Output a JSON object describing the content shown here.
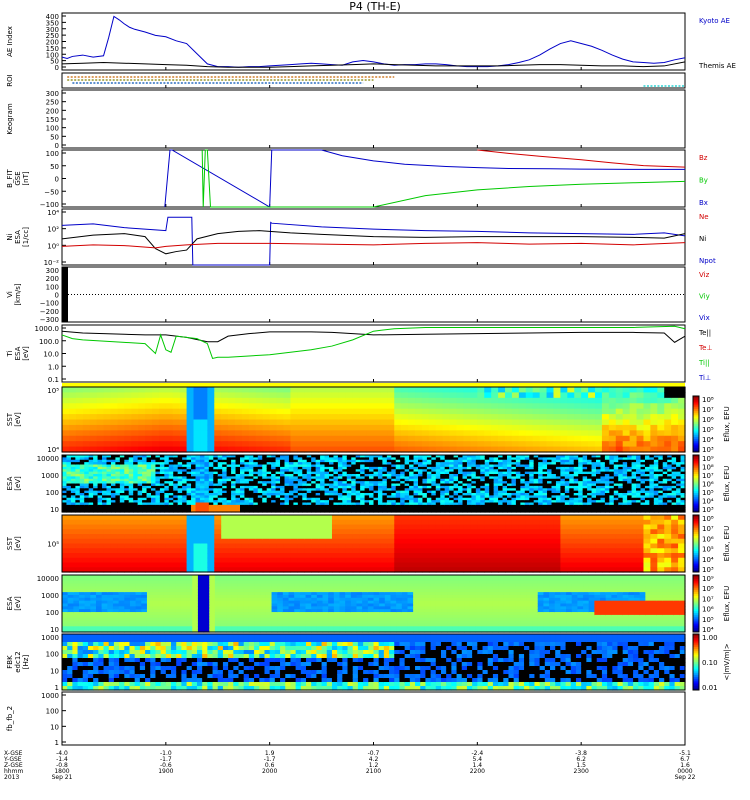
{
  "chart_data": {
    "type": "line",
    "title": "P4 (TH-E)",
    "start_time": "1800",
    "end_time": "0000",
    "panels": [
      {
        "id": "ae",
        "ylabel": "AE Index",
        "yticks": [
          "400",
          "350",
          "300",
          "250",
          "200",
          "150",
          "100",
          "50",
          "0"
        ],
        "ylim": [
          0,
          420
        ],
        "legend": [
          {
            "name": "Kyoto AE",
            "color": "#0000c8"
          },
          {
            "name": "Themis AE",
            "color": "#000000"
          }
        ],
        "series": [
          {
            "name": "Kyoto AE",
            "color": "#0000c8",
            "x": [
              0,
              0.05,
              0.1,
              0.2,
              0.3,
              0.4,
              0.45,
              0.5,
              0.55,
              0.6,
              0.65,
              0.7,
              0.8,
              0.9,
              1.0,
              1.1,
              1.2,
              1.3,
              1.4,
              1.5,
              1.6,
              1.7,
              1.8,
              1.9,
              2.0,
              2.1,
              2.2,
              2.3,
              2.4,
              2.5,
              2.6,
              2.7,
              2.8,
              2.9,
              3.0,
              3.1,
              3.2,
              3.3,
              3.4,
              3.5,
              3.6,
              3.7,
              3.8,
              3.9,
              4.0,
              4.1,
              4.2,
              4.3,
              4.4,
              4.5,
              4.6,
              4.7,
              4.8,
              4.9,
              5.0,
              5.1,
              5.2,
              5.3,
              5.4,
              5.5,
              5.6,
              5.7,
              5.8,
              5.9,
              6.0
            ],
            "y": [
              95,
              85,
              100,
              110,
              95,
              105,
              240,
              395,
              370,
              340,
              315,
              300,
              280,
              255,
              245,
              215,
              195,
              120,
              45,
              25,
              25,
              20,
              25,
              25,
              30,
              35,
              40,
              45,
              50,
              45,
              40,
              35,
              60,
              70,
              60,
              45,
              35,
              40,
              40,
              45,
              45,
              40,
              30,
              25,
              25,
              25,
              30,
              40,
              55,
              75,
              110,
              155,
              195,
              215,
              195,
              175,
              145,
              110,
              80,
              60,
              55,
              50,
              55,
              75,
              90
            ]
          },
          {
            "name": "Themis AE",
            "color": "#000000",
            "x": [
              0,
              0.2,
              0.4,
              0.6,
              0.8,
              1.0,
              1.2,
              1.4,
              1.6,
              1.8,
              2.0,
              2.2,
              2.4,
              2.6,
              2.8,
              3.0,
              3.2,
              3.4,
              3.6,
              3.8,
              4.0,
              4.2,
              4.4,
              4.6,
              4.8,
              5.0,
              5.2,
              5.4,
              5.6,
              5.8,
              6.0
            ],
            "y": [
              45,
              50,
              55,
              50,
              45,
              40,
              35,
              25,
              20,
              20,
              20,
              25,
              30,
              35,
              40,
              45,
              40,
              35,
              30,
              30,
              30,
              30,
              35,
              40,
              40,
              35,
              30,
              30,
              25,
              30,
              60
            ]
          }
        ]
      },
      {
        "id": "roi",
        "ylabel": "ROI",
        "marks": [
          {
            "name": "roi-row-1",
            "color": "#c86400",
            "x_start": 0.05,
            "x_end": 3.2
          },
          {
            "name": "roi-row-2",
            "color": "#808000",
            "x_start": 0.05,
            "x_end": 3.0
          },
          {
            "name": "roi-row-3",
            "color": "#0050b4",
            "x_start": 0.1,
            "x_end": 2.9
          },
          {
            "name": "roi-row-4",
            "color": "#00c8c8",
            "x_start": 5.6,
            "x_end": 6.0
          }
        ]
      },
      {
        "id": "keogram",
        "ylabel": "Keogram",
        "yticks": [
          "300",
          "250",
          "200",
          "150",
          "100",
          "50",
          "0"
        ],
        "ylim": [
          0,
          300
        ]
      },
      {
        "id": "b_fit",
        "ylabel": "B_FIT\nGSE\n[nT]",
        "yticks": [
          "100",
          "50",
          "0",
          "−50",
          "−100"
        ],
        "ylim": [
          -100,
          100
        ],
        "legend": [
          {
            "name": "Bz",
            "color": "#d20000"
          },
          {
            "name": "By",
            "color": "#00c800"
          },
          {
            "name": "Bx",
            "color": "#0000c8"
          }
        ],
        "series": [
          {
            "name": "Bx",
            "color": "#0000c8",
            "x": [
              0.99,
              1.04,
              1.06,
              2.0,
              2.02,
              2.5,
              2.7,
              3.0,
              3.3,
              3.7,
              4.0,
              4.3,
              4.7,
              5.0,
              5.5,
              6.0
            ],
            "y": [
              -100,
              100,
              100,
              -100,
              100,
              100,
              80,
              62,
              50,
              42,
              38,
              35,
              34,
              33,
              32,
              32
            ]
          },
          {
            "name": "By",
            "color": "#00c800",
            "x": [
              1.35,
              1.36,
              1.38,
              1.4,
              1.43,
              3.0,
              3.5,
              4.0,
              4.5,
              5.0,
              5.5,
              6.0
            ],
            "y": [
              100,
              -100,
              100,
              100,
              -100,
              -100,
              -60,
              -40,
              -28,
              -20,
              -15,
              -10
            ]
          },
          {
            "name": "Bz",
            "color": "#d20000",
            "x": [
              4.0,
              4.3,
              4.6,
              5.0,
              5.3,
              5.6,
              6.0
            ],
            "y": [
              100,
              88,
              78,
              66,
              55,
              45,
              40
            ]
          }
        ]
      },
      {
        "id": "ni",
        "ylabel": "Ni\nESA\n[1/cc]",
        "yticks": [
          "10⁴",
          "10²",
          "10⁰",
          "10⁻²"
        ],
        "ylim_log": [
          -3,
          4.5
        ],
        "legend": [
          {
            "name": "Ne",
            "color": "#d20000"
          },
          {
            "name": "Ni",
            "color": "#000000"
          },
          {
            "name": "Npot",
            "color": "#0000c8"
          }
        ],
        "series": [
          {
            "name": "Npot",
            "color": "#0000c8",
            "x": [
              0,
              0.3,
              0.6,
              0.9,
              1.0,
              1.02,
              1.2,
              1.25,
              1.26,
              1.27,
              1.8,
              2.0,
              2.01,
              2.02,
              2.5,
              3.0,
              3.5,
              4.0,
              4.5,
              5.0,
              5.5,
              5.8,
              6.0
            ],
            "y": [
              2.3,
              2.5,
              2.0,
              1.7,
              1.6,
              3.4,
              3.4,
              3.4,
              -3,
              -3,
              -3,
              -3,
              2.7,
              2.6,
              2.1,
              1.8,
              1.6,
              1.5,
              1.3,
              1.2,
              1.1,
              1.3,
              0.9
            ]
          },
          {
            "name": "Ni",
            "color": "#000000",
            "x": [
              0,
              0.3,
              0.6,
              0.8,
              0.9,
              1.0,
              1.1,
              1.2,
              1.3,
              1.5,
              1.7,
              1.9,
              2.0,
              2.2,
              2.5,
              3.0,
              3.5,
              4.0,
              4.5,
              5.0,
              5.5,
              5.8,
              6.0
            ],
            "y": [
              0.5,
              1.0,
              1.2,
              0.8,
              -0.8,
              -1.5,
              -1.2,
              -1.0,
              0.5,
              1.2,
              1.5,
              1.6,
              1.5,
              1.3,
              1.1,
              0.8,
              0.7,
              0.8,
              0.8,
              0.8,
              0.7,
              0.6,
              1.2
            ]
          },
          {
            "name": "Ne",
            "color": "#d20000",
            "x": [
              0,
              0.3,
              0.6,
              0.9,
              1.0,
              1.2,
              1.5,
              2.0,
              2.5,
              3.0,
              3.5,
              4.0,
              4.5,
              5.0,
              5.5,
              6.0
            ],
            "y": [
              -0.5,
              -0.3,
              -0.4,
              -0.7,
              -0.5,
              -0.3,
              -0.1,
              -0.1,
              -0.2,
              -0.3,
              -0.1,
              0.0,
              -0.2,
              -0.1,
              -0.3,
              0.0
            ]
          }
        ]
      },
      {
        "id": "vi",
        "ylabel": "Vi\n[km/s]",
        "yticks": [
          "300",
          "200",
          "100",
          "0",
          "−100",
          "−200",
          "−300"
        ],
        "ylim": [
          -350,
          350
        ],
        "legend": [
          {
            "name": "Viz",
            "color": "#d20000"
          },
          {
            "name": "Viy",
            "color": "#00c800"
          },
          {
            "name": "Vix",
            "color": "#0000c8"
          }
        ]
      },
      {
        "id": "ti",
        "ylabel": "Ti\nESA\n[eV]",
        "yticks": [
          "1000.0",
          "100.0",
          "10.0",
          "1.0",
          "0.1"
        ],
        "ylim_log": [
          -1.2,
          3.4
        ],
        "legend": [
          {
            "name": "Te||",
            "color": "#000000"
          },
          {
            "name": "Te⊥",
            "color": "#d20000"
          },
          {
            "name": "Ti||",
            "color": "#00c800"
          },
          {
            "name": "Ti⊥",
            "color": "#0000c8"
          }
        ],
        "series": [
          {
            "name": "Te||",
            "color": "#000000",
            "x": [
              0,
              0.2,
              0.4,
              0.6,
              0.8,
              1.0,
              1.2,
              1.4,
              1.5,
              1.6,
              1.8,
              2.0,
              2.2,
              2.4,
              2.6,
              2.8,
              3.0,
              3.5,
              4.0,
              4.5,
              5.0,
              5.5,
              5.8,
              5.9,
              6.0
            ],
            "y": [
              2.9,
              2.75,
              2.7,
              2.65,
              2.6,
              2.6,
              2.4,
              2.05,
              2.05,
              2.5,
              2.7,
              2.85,
              2.85,
              2.85,
              2.8,
              2.7,
              2.6,
              2.65,
              2.7,
              2.75,
              2.8,
              2.8,
              2.75,
              2.0,
              2.5
            ]
          },
          {
            "name": "Ti||",
            "color": "#00c800",
            "x": [
              0,
              0.1,
              0.2,
              0.4,
              0.6,
              0.8,
              0.9,
              0.95,
              1.0,
              1.05,
              1.1,
              1.3,
              1.4,
              1.45,
              1.5,
              1.6,
              1.8,
              2.0,
              2.2,
              2.4,
              2.6,
              2.8,
              3.0,
              3.2,
              3.5,
              4.0,
              4.5,
              5.0,
              5.5,
              5.9,
              6.0
            ],
            "y": [
              2.6,
              2.3,
              2.2,
              2.1,
              2.0,
              1.9,
              1.1,
              2.6,
              1.4,
              1.2,
              2.5,
              2.3,
              1.9,
              0.7,
              0.8,
              0.8,
              0.9,
              1.0,
              1.2,
              1.4,
              1.7,
              2.2,
              2.9,
              3.1,
              3.2,
              3.2,
              3.2,
              3.2,
              3.2,
              3.3,
              3.1
            ]
          }
        ]
      },
      {
        "id": "sst_a",
        "ylabel": "SST\n[eV]",
        "yticks": [
          "10⁵",
          "10⁴"
        ],
        "colorbar": {
          "label": "Eflux, EFU",
          "ticks": [
            "10⁸",
            "10⁷",
            "10⁶",
            "10⁵",
            "10⁴",
            "10³"
          ]
        }
      },
      {
        "id": "esa_a",
        "ylabel": "ESA\n[eV]",
        "yticks": [
          "10000",
          "1000",
          "100",
          "10"
        ],
        "colorbar": {
          "label": "Eflux, EFU",
          "ticks": [
            "10⁹",
            "10⁸",
            "10⁷",
            "10⁶",
            "10⁵",
            "10⁴",
            "10³"
          ]
        }
      },
      {
        "id": "sst_e",
        "ylabel": "SST\n[eV]",
        "yticks": [
          "10⁵"
        ],
        "colorbar": {
          "label": "Eflux, EFU",
          "ticks": [
            "10⁸",
            "10⁷",
            "10⁶",
            "10⁵",
            "10⁴",
            "10³"
          ]
        }
      },
      {
        "id": "esa_e",
        "ylabel": "ESA\n[eV]",
        "yticks": [
          "10000",
          "1000",
          "100",
          "10"
        ],
        "colorbar": {
          "label": "Eflux, EFU",
          "ticks": [
            "10⁹",
            "10⁸",
            "10⁷",
            "10⁶",
            "10⁵",
            "10⁴"
          ]
        }
      },
      {
        "id": "fbk",
        "ylabel": "FBK\nedc12\n[Hz]",
        "yticks": [
          "1000",
          "100",
          "10",
          "1"
        ],
        "colorbar": {
          "label": "<|mV/m|>",
          "ticks": [
            "1.00",
            "0.10",
            "0.01"
          ]
        }
      },
      {
        "id": "fb",
        "ylabel": "fb_fb_2",
        "yticks": [
          "1000",
          "100",
          "10",
          "1"
        ]
      }
    ],
    "x_axis": {
      "row_labels": [
        "X-GSE",
        "Y-GSE",
        "Z-GSE",
        "hhmm",
        "2013"
      ],
      "ticks": [
        {
          "t": 0,
          "vals": [
            "-4.0",
            "-1.4",
            "-0.8",
            "1800",
            "Sep 21"
          ]
        },
        {
          "t": 1,
          "vals": [
            "-1.0",
            "-1.7",
            "-0.6",
            "1900",
            ""
          ]
        },
        {
          "t": 2,
          "vals": [
            "1.9",
            "-1.7",
            "0.6",
            "2000",
            ""
          ]
        },
        {
          "t": 3,
          "vals": [
            "-0.7",
            "4.2",
            "1.2",
            "2100",
            ""
          ]
        },
        {
          "t": 4,
          "vals": [
            "-2.4",
            "5.4",
            "1.4",
            "2200",
            ""
          ]
        },
        {
          "t": 5,
          "vals": [
            "-3.8",
            "6.2",
            "1.5",
            "2300",
            ""
          ]
        },
        {
          "t": 6,
          "vals": [
            "-5.1",
            "6.7",
            "1.6",
            "0000",
            "Sep 22"
          ]
        }
      ]
    }
  }
}
